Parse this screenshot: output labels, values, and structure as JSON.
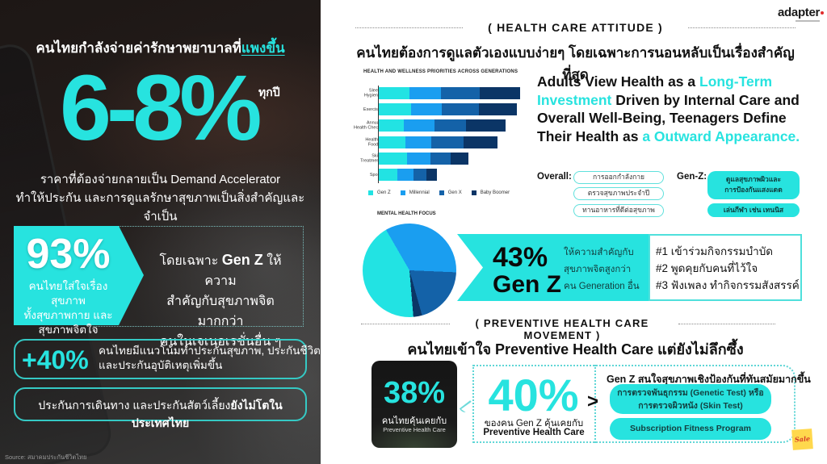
{
  "left_panel": {
    "headline_prefix": "คนไทยกำลังจ่ายค่ารักษาพยาบาลที่",
    "headline_highlight": "แพงขึ้น",
    "big_stat": "6-8%",
    "big_stat_suffix": "ทุกปี",
    "description_lines": [
      "ราคาที่ต้องจ่ายกลายเป็น Demand Accelerator",
      "ทำให้ประกัน และการดูแลรักษาสุขภาพเป็นสิ่งสำคัญและจำเป็น"
    ],
    "stat_93": {
      "value": "93%",
      "caption_lines": [
        "คนไทยใส่ใจเรื่องสุขภาพ",
        "ทั้งสุขภาพกาย และ",
        "สุขภาพจิตใจ"
      ],
      "detail_prefix": "โดยเฉพาะ ",
      "detail_bold": "Gen Z",
      "detail_suffix": " ให้ความ",
      "detail_lines": [
        "สำคัญกับสุขภาพจิตมากกว่า",
        "คนในเจเนอเรชั่นอื่น ๆ"
      ]
    },
    "stat_40": {
      "value": "+40%",
      "text_lines": [
        "คนไทยมีแนวโน้มทำประกันสุขภาพ, ประกันชีวิต",
        "และประกันอุบัติเหตุเพิ่มขึ้น"
      ]
    },
    "insurance_note": {
      "normal": "ประกันการเดินทาง และประกันสัตว์เลี้ยง",
      "bold": "ยังไม่โตในประเทศไทย"
    },
    "source": "Source: สมาคมประกันชีวิตไทย"
  },
  "brand": {
    "logo": "adapter",
    "logo_dot_color": "#e02b2b"
  },
  "attitude": {
    "section_label": "( HEALTH CARE ATTITUDE )",
    "headline": "คนไทยต้องการดูแลตัวเองแบบง่ายๆ โดยเฉพาะการนอนหลับเป็นเรื่องสำคัญที่สุด",
    "adults_text": {
      "p1": "Adults View Health as a ",
      "h1": "Long-Term Investment",
      "p2": " Driven by Internal Care and Overall Well-Being, Teenagers Define Their Health as ",
      "h2": "a Outward Appearance."
    },
    "overall_label": "Overall:",
    "overall_items": [
      "การออกกำลังกาย",
      "ตรวจสุขภาพประจำปี",
      "ทานอาหารที่ดีต่อสุขภาพ"
    ],
    "genz_label": "Gen-Z:",
    "genz_items": [
      [
        "ดูแลสุขภาพผิวและ",
        "การป้องกันแสงแดด"
      ],
      [
        "เล่นกีฬา เช่น เทนนิส"
      ]
    ]
  },
  "mental_health": {
    "value": "43%",
    "generation": "Gen Z",
    "desc_lines": [
      "ให้ความสำคัญกับ",
      "สุขภาพจิตสูงกว่า",
      "คน Generation อื่น"
    ],
    "ranked": [
      "#1 เข้าร่วมกิจกรรมบำบัด",
      "#2 พูดคุยกับคนที่ไว้ใจ",
      "#3 ฟังเพลง ทำกิจกรรมสังสรรค์"
    ]
  },
  "preventive": {
    "section_label": "( PREVENTIVE HEALTH CARE MOVEMENT )",
    "headline": "คนไทยเข้าใจ Preventive Health Care แต่ยังไม่ลึกซึ้ง",
    "stat_38": {
      "value": "38%",
      "caption1": "คนไทยคุ้นเคยกับ",
      "caption2": "Preventive Health Care"
    },
    "stat_40": {
      "value": "40%",
      "caption1": "ของคน Gen Z คุ้นเคยกับ",
      "caption2": "Preventive Health Care"
    },
    "arrow": ">",
    "genz_heading": "Gen Z สนใจสุขภาพเชิงป้องกันที่ทันสมัยมากขึ้น",
    "genz_items": [
      [
        "การตรวจพันธุกรรม (Genetic Test) หรือ",
        "การตรวจผิวหนัง (Skin Test)"
      ],
      [
        "Subscription Fitness Program"
      ]
    ],
    "sticker": "Sale"
  },
  "colors": {
    "accent_cyan": "#27e3df",
    "gen_z": "#22e3e3",
    "millennial": "#1a9ef0",
    "gen_x": "#1462a8",
    "baby_boomer": "#0b3566"
  },
  "chart_data": [
    {
      "type": "bar",
      "orientation": "horizontal",
      "stacked": true,
      "title": "HEALTH AND WELLNESS PRIORITIES ACROSS GENERATIONS",
      "categories": [
        "Sleep\nHygiene",
        "Exercise",
        "Annual\nHealth Check",
        "Healthy\nFoods",
        "Skin\nTreatment",
        "Sport"
      ],
      "series": [
        {
          "name": "Gen Z",
          "color": "#22e3e3",
          "values": [
            38,
            40,
            31,
            33,
            35,
            23
          ]
        },
        {
          "name": "Millennial",
          "color": "#1a9ef0",
          "values": [
            39,
            38,
            38,
            32,
            29,
            20
          ]
        },
        {
          "name": "Gen X",
          "color": "#1462a8",
          "values": [
            48,
            46,
            39,
            40,
            25,
            16
          ]
        },
        {
          "name": "Baby Boomer",
          "color": "#0b3566",
          "values": [
            50,
            47,
            49,
            42,
            22,
            13
          ]
        }
      ],
      "xlabel": "",
      "ylabel": "",
      "grid": false,
      "legend_position": "bottom",
      "note": "no value axis shown; values are relative bar lengths"
    },
    {
      "type": "pie",
      "title": "MENTAL HEALTH FOCUS",
      "labels": [
        "Millennial",
        "Gen X",
        "Baby Boomer",
        "Gen Z"
      ],
      "values": [
        34,
        20,
        3,
        43
      ],
      "colors": [
        "#1a9ef0",
        "#1462a8",
        "#0b3566",
        "#22e3e3"
      ],
      "start_angle_deg": 330
    }
  ]
}
